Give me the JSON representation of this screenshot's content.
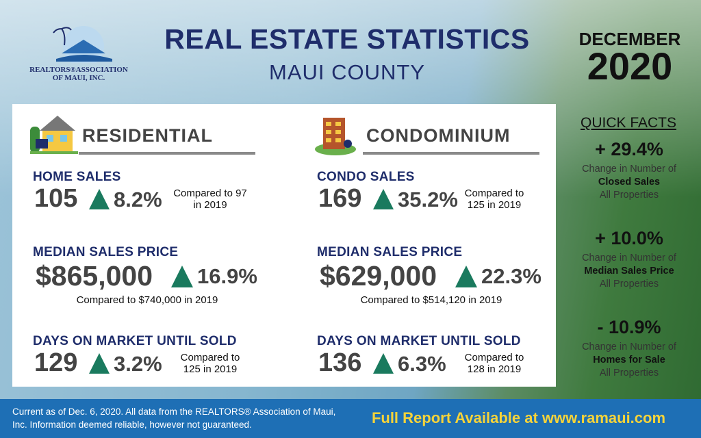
{
  "header": {
    "org_line1": "REALTORS®ASSOCIATION",
    "org_line2": "OF MAUI, INC.",
    "title": "REAL ESTATE STATISTICS",
    "subtitle": "MAUI COUNTY",
    "month": "DECEMBER",
    "year": "2020"
  },
  "sections": [
    {
      "heading": "RESIDENTIAL",
      "stats": [
        {
          "label": "HOME SALES",
          "value": "105",
          "change": "8.2%",
          "comparison": "Compared to 97 in 2019"
        },
        {
          "label": "MEDIAN SALES PRICE",
          "value": "$865,000",
          "change": "16.9%",
          "comparison": "Compared to $740,000 in 2019"
        },
        {
          "label": "DAYS ON MARKET UNTIL SOLD",
          "value": "129",
          "change": "3.2%",
          "comparison": "Compared to 125 in 2019"
        }
      ]
    },
    {
      "heading": "CONDOMINIUM",
      "stats": [
        {
          "label": "CONDO SALES",
          "value": "169",
          "change": "35.2%",
          "comparison": "Compared to 125 in 2019"
        },
        {
          "label": "MEDIAN SALES PRICE",
          "value": "$629,000",
          "change": "22.3%",
          "comparison": "Compared to $514,120 in 2019"
        },
        {
          "label": "DAYS ON MARKET UNTIL SOLD",
          "value": "136",
          "change": "6.3%",
          "comparison": "Compared to 128 in 2019"
        }
      ]
    }
  ],
  "quick_facts": {
    "heading": "QUICK FACTS",
    "items": [
      {
        "value": "+ 29.4%",
        "line1": "Change in Number of",
        "emphasis": "Closed Sales",
        "line3": "All Properties"
      },
      {
        "value": "+ 10.0%",
        "line1": "Change in Number of",
        "emphasis": "Median Sales Price",
        "line3": "All Properties"
      },
      {
        "value": "- 10.9%",
        "line1": "Change in Number of",
        "emphasis": "Homes for Sale",
        "line3": "All Properties"
      }
    ]
  },
  "footer": {
    "disclaimer": "Current as of Dec. 6, 2020. All data from the REALTORS® Association of Maui, Inc. Information deemed reliable, however not guaranteed.",
    "link": "Full Report Available at www.ramaui.com"
  }
}
